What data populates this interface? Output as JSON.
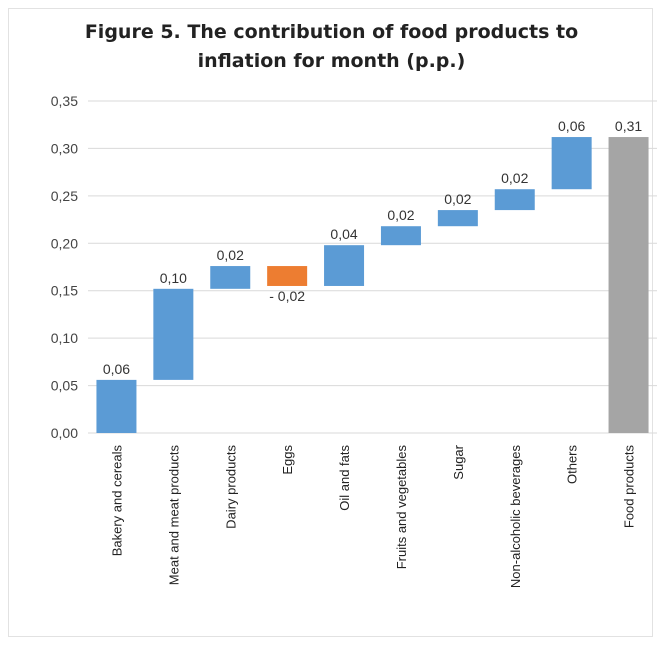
{
  "chart_data": {
    "type": "bar",
    "subtype": "waterfall",
    "title_line1": "Figure 5. The contribution of food products to",
    "title_line2": "inflation for month (p.p.)",
    "xlabel": "",
    "ylabel": "",
    "ylim": [
      0,
      0.35
    ],
    "yticks": [
      "0,00",
      "0,05",
      "0,10",
      "0,15",
      "0,20",
      "0,25",
      "0,30",
      "0,35"
    ],
    "grid": true,
    "legend": "none",
    "categories": [
      "Bakery and cereals",
      "Meat and meat products",
      "Dairy products",
      "Eggs",
      "Oil and fats",
      "Fruits and vegetables",
      "Sugar",
      "Non-alcoholic beverages",
      "Others",
      "Food products"
    ],
    "bars": [
      {
        "label": "0,06",
        "start": 0.0,
        "end": 0.056,
        "kind": "increase"
      },
      {
        "label": "0,10",
        "start": 0.056,
        "end": 0.152,
        "kind": "increase"
      },
      {
        "label": "0,02",
        "start": 0.152,
        "end": 0.176,
        "kind": "increase"
      },
      {
        "label": "- 0,02",
        "start": 0.176,
        "end": 0.155,
        "kind": "decrease"
      },
      {
        "label": "0,04",
        "start": 0.155,
        "end": 0.198,
        "kind": "increase"
      },
      {
        "label": "0,02",
        "start": 0.198,
        "end": 0.218,
        "kind": "increase"
      },
      {
        "label": "0,02",
        "start": 0.218,
        "end": 0.235,
        "kind": "increase"
      },
      {
        "label": "0,02",
        "start": 0.235,
        "end": 0.257,
        "kind": "increase"
      },
      {
        "label": "0,06",
        "start": 0.257,
        "end": 0.312,
        "kind": "increase"
      },
      {
        "label": "0,31",
        "start": 0.0,
        "end": 0.312,
        "kind": "total"
      }
    ],
    "colors": {
      "increase": "#5b9bd5",
      "decrease": "#ed7d31",
      "total": "#a5a5a5",
      "grid": "#d9d9d9"
    }
  }
}
